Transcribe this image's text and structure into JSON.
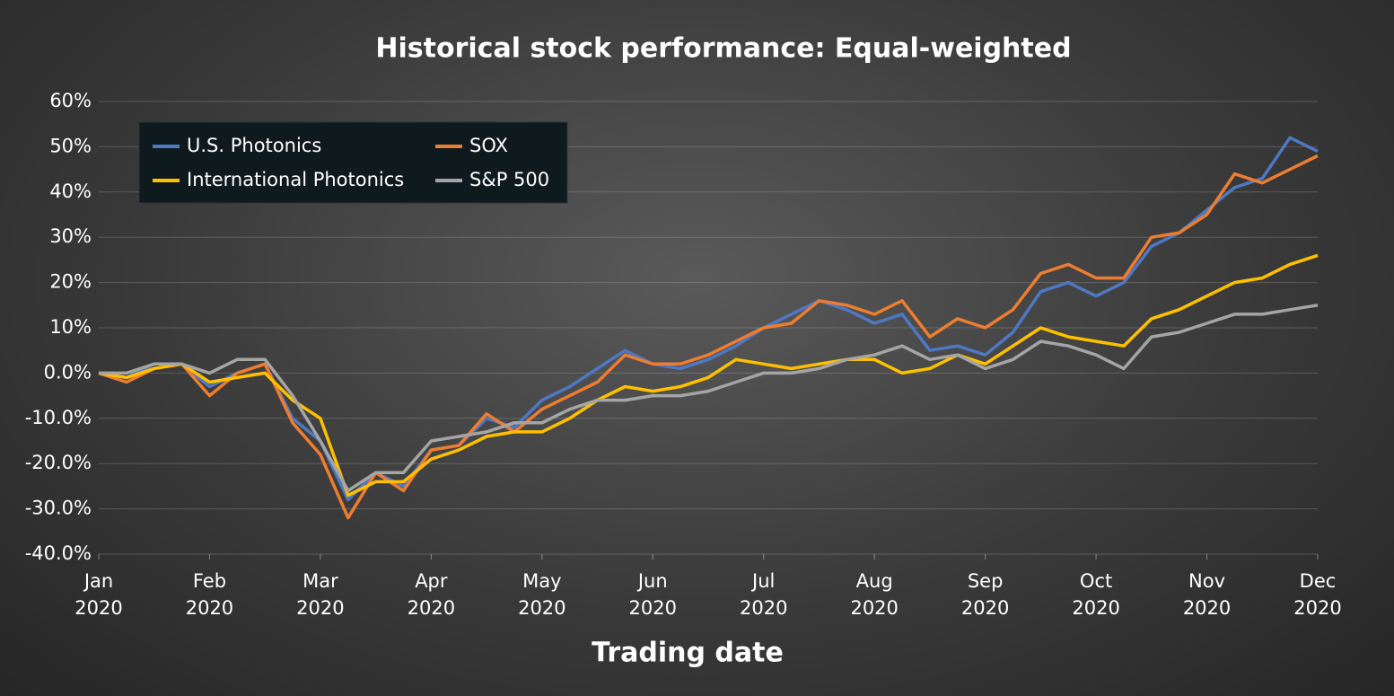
{
  "chart_data": {
    "type": "line",
    "title": "Historical stock performance: Equal-weighted",
    "x_label": "Trading date",
    "x": [
      0,
      0.25,
      0.5,
      0.75,
      1,
      1.25,
      1.5,
      1.75,
      2,
      2.25,
      2.5,
      2.75,
      3,
      3.25,
      3.5,
      3.75,
      4,
      4.25,
      4.5,
      4.75,
      5,
      5.25,
      5.5,
      5.75,
      6,
      6.25,
      6.5,
      6.75,
      7,
      7.25,
      7.5,
      7.75,
      8,
      8.25,
      8.5,
      8.75,
      9,
      9.25,
      9.5,
      9.75,
      10,
      10.25,
      10.5,
      10.75,
      11
    ],
    "series": [
      {
        "name": "U.S. Photonics",
        "color": "#4f78c4",
        "values": [
          0,
          -1,
          2,
          2,
          -3,
          0,
          2,
          -10,
          -15,
          -28,
          -22,
          -25,
          -17,
          -16,
          -10,
          -12,
          -6,
          -3,
          1,
          5,
          2,
          1,
          3,
          6,
          10,
          13,
          16,
          14,
          11,
          13,
          5,
          6,
          4,
          9,
          18,
          20,
          17,
          20,
          28,
          31,
          36,
          41,
          43,
          52,
          49
        ]
      },
      {
        "name": "SOX",
        "color": "#ed7d31",
        "values": [
          0,
          -2,
          1,
          2,
          -5,
          0,
          2,
          -11,
          -18,
          -32,
          -22,
          -26,
          -17,
          -16,
          -9,
          -13,
          -8,
          -5,
          -2,
          4,
          2,
          2,
          4,
          7,
          10,
          11,
          16,
          15,
          13,
          16,
          8,
          12,
          10,
          14,
          22,
          24,
          21,
          21,
          30,
          31,
          35,
          44,
          42,
          45,
          48
        ]
      },
      {
        "name": "International Photonics",
        "color": "#ffc000",
        "values": [
          0,
          -1,
          1,
          2,
          -2,
          -1,
          0,
          -6,
          -10,
          -27,
          -24,
          -24,
          -19,
          -17,
          -14,
          -13,
          -13,
          -10,
          -6,
          -3,
          -4,
          -3,
          -1,
          3,
          2,
          1,
          2,
          3,
          3,
          0,
          1,
          4,
          2,
          6,
          10,
          8,
          7,
          6,
          12,
          14,
          17,
          20,
          21,
          24,
          26
        ]
      },
      {
        "name": "S&P 500",
        "color": "#a5a5a5",
        "values": [
          0,
          0,
          2,
          2,
          0,
          3,
          3,
          -5,
          -15,
          -26,
          -22,
          -22,
          -15,
          -14,
          -13,
          -11,
          -11,
          -8,
          -6,
          -6,
          -5,
          -5,
          -4,
          -2,
          0,
          0,
          1,
          3,
          4,
          6,
          3,
          4,
          1,
          3,
          7,
          6,
          4,
          1,
          8,
          9,
          11,
          13,
          13,
          14,
          15
        ]
      }
    ],
    "xlim": [
      0,
      11
    ],
    "xticks": [
      {
        "value": 0,
        "label": "Jan 2020"
      },
      {
        "value": 1,
        "label": "Feb 2020"
      },
      {
        "value": 2,
        "label": "Mar 2020"
      },
      {
        "value": 3,
        "label": "Apr 2020"
      },
      {
        "value": 4,
        "label": "May 2020"
      },
      {
        "value": 5,
        "label": "Jun 2020"
      },
      {
        "value": 6,
        "label": "Jul 2020"
      },
      {
        "value": 7,
        "label": "Aug 2020"
      },
      {
        "value": 8,
        "label": "Sep 2020"
      },
      {
        "value": 9,
        "label": "Oct 2020"
      },
      {
        "value": 10,
        "label": "Nov 2020"
      },
      {
        "value": 11,
        "label": "Dec 2020"
      }
    ],
    "ylim": [
      -40,
      60
    ],
    "yticks": [
      {
        "value": 60,
        "label": "60%"
      },
      {
        "value": 50,
        "label": "50%"
      },
      {
        "value": 40,
        "label": "40%"
      },
      {
        "value": 30,
        "label": "30%"
      },
      {
        "value": 20,
        "label": "20%"
      },
      {
        "value": 10,
        "label": "10%"
      },
      {
        "value": 0,
        "label": "0.0%"
      },
      {
        "value": -10,
        "label": "-10.0%"
      },
      {
        "value": -20,
        "label": "-20.0%"
      },
      {
        "value": -30,
        "label": "-30.0%"
      },
      {
        "value": -40,
        "label": "-40.0%"
      }
    ],
    "grid": true,
    "legend": "upper left"
  }
}
